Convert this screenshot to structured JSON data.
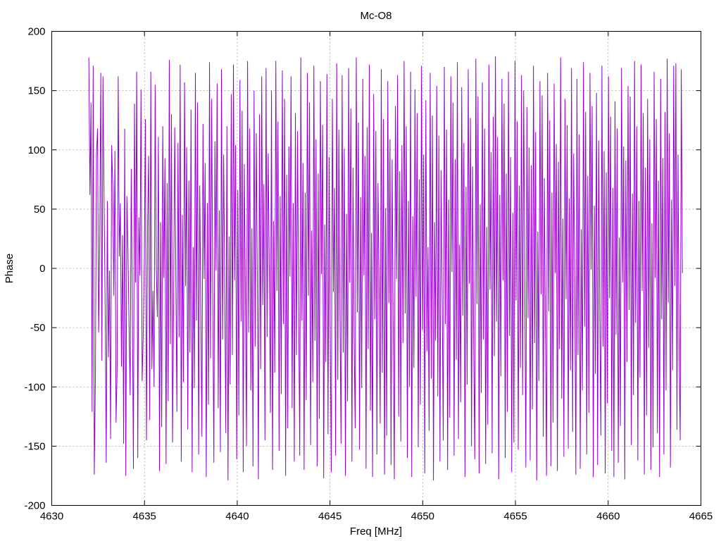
{
  "chart_data": {
    "type": "line",
    "title": "Mc-O8",
    "xlabel": "Freq [MHz]",
    "ylabel": "Phase",
    "xlim": [
      4630,
      4665
    ],
    "ylim": [
      -200,
      200
    ],
    "xticks": [
      4630,
      4635,
      4640,
      4645,
      4650,
      4655,
      4660,
      4665
    ],
    "yticks": [
      -200,
      -150,
      -100,
      -50,
      0,
      50,
      100,
      150,
      200
    ],
    "grid": true,
    "legend": "none",
    "line_color": "#9400d3",
    "x_start": 4632,
    "x_end": 4664,
    "point_count": 512,
    "series": [
      {
        "values": [
          178,
          62,
          140,
          -121,
          171,
          -174,
          -97,
          96,
          118,
          -54,
          21,
          165,
          -78,
          162,
          59,
          -31,
          -164,
          57,
          -75,
          -2,
          -144,
          104,
          70,
          -23,
          99,
          -130,
          -88,
          162,
          10,
          55,
          -83,
          28,
          -148,
          118,
          -175,
          61,
          14,
          -50,
          -107,
          84,
          -30,
          -169,
          139,
          -12,
          166,
          -160,
          43,
          -6,
          151,
          -95,
          -58,
          4,
          126,
          -145,
          36,
          95,
          -128,
          166,
          -85,
          -19,
          -100,
          155,
          2,
          -41,
          111,
          -171,
          39,
          -134,
          120,
          -8,
          93,
          -165,
          72,
          -112,
          176,
          -64,
          130,
          -147,
          -29,
          119,
          -4,
          -121,
          106,
          -58,
          172,
          -163,
          45,
          -96,
          157,
          -15,
          102,
          -136,
          74,
          -71,
          134,
          -172,
          18,
          -101,
          165,
          -44,
          140,
          -157,
          70,
          -33,
          -142,
          122,
          -9,
          89,
          -176,
          55,
          -115,
          174,
          -76,
          143,
          -28,
          -164,
          107,
          -2,
          156,
          -118,
          49,
          -155,
          168,
          -60,
          96,
          -14,
          -139,
          120,
          -179,
          27,
          -98,
          147,
          -73,
          172,
          -10,
          104,
          -161,
          66,
          -124,
          159,
          -45,
          133,
          -172,
          88,
          -20,
          -150,
          175,
          -54,
          118,
          -103,
          34,
          -167,
          150,
          -66,
          114,
          -11,
          -178,
          130,
          -85,
          162,
          -31,
          71,
          -145,
          169,
          -58,
          97,
          -2,
          -122,
          150,
          -170,
          40,
          -88,
          175,
          -19,
          124,
          -154,
          61,
          -106,
          167,
          -47,
          143,
          -175,
          79,
          -135,
          103,
          -7,
          162,
          -118,
          55,
          -163,
          131,
          -73,
          116,
          -32,
          -158,
          178,
          -44,
          89,
          -170,
          64,
          -111,
          165,
          -23,
          140,
          -149,
          32,
          -96,
          171,
          -61,
          109,
          -167,
          80,
          -127,
          158,
          -5,
          121,
          -177,
          37,
          -79,
          164,
          -140,
          94,
          -50,
          -172,
          143,
          -20,
          68,
          -158,
          173,
          -94,
          117,
          -34,
          -148,
          163,
          -71,
          101,
          -175,
          46,
          -112,
          169,
          -12,
          135,
          -163,
          85,
          -58,
          -135,
          178,
          -37,
          123,
          -153,
          60,
          -101,
          160,
          -6,
          95,
          -169,
          119,
          -68,
          172,
          -120,
          30,
          -176,
          147,
          -43,
          116,
          -157,
          72,
          -16,
          -131,
          168,
          -88,
          126,
          -174,
          51,
          -141,
          158,
          -29,
          109,
          -166,
          92,
          -55,
          -178,
          137,
          -9,
          163,
          -125,
          82,
          -146,
          104,
          -63,
          175,
          -38,
          120,
          -160,
          57,
          -100,
          166,
          -176,
          44,
          -84,
          151,
          -24,
          131,
          -151,
          75,
          -115,
          171,
          -52,
          96,
          -173,
          142,
          -70,
          18,
          -137,
          165,
          -93,
          129,
          -179,
          39,
          -61,
          154,
          -108,
          112,
          -163,
          83,
          -21,
          -145,
          170,
          -47,
          117,
          -170,
          58,
          -126,
          162,
          -3,
          140,
          -158,
          92,
          -77,
          174,
          -144,
          20,
          -113,
          153,
          -40,
          106,
          -176,
          69,
          -98,
          168,
          -13,
          127,
          -150,
          86,
          -65,
          -161,
          177,
          -30,
          145,
          -173,
          54,
          -105,
          157,
          -60,
          118,
          -165,
          35,
          -132,
          172,
          -18,
          98,
          -156,
          128,
          -74,
          179,
          -45,
          111,
          -178,
          62,
          -91,
          160,
          -10,
          139,
          -160,
          80,
          -121,
          166,
          -57,
          94,
          -172,
          47,
          -147,
          175,
          -27,
          124,
          -153,
          70,
          -84,
          163,
          -107,
          150,
          -8,
          -168,
          136,
          -42,
          102,
          -162,
          87,
          -119,
          171,
          -63,
          115,
          -179,
          31,
          -95,
          158,
          -22,
          146,
          -142,
          76,
          -52,
          -175,
          165,
          -36,
          125,
          -167,
          64,
          -130,
          156,
          -4,
          105,
          -171,
          90,
          -68,
          178,
          -110,
          42,
          -159,
          143,
          -26,
          121,
          -152,
          59,
          -86,
          169,
          -138,
          97,
          -15,
          -174,
          160,
          -73,
          113,
          -169,
          33,
          -103,
          174,
          -49,
          132,
          -157,
          78,
          -122,
          165,
          -1,
          137,
          -176,
          53,
          -89,
          148,
          -166,
          108,
          -39,
          -141,
          171,
          -66,
          99,
          -173,
          81,
          -114,
          162,
          -25,
          128,
          -154,
          68,
          -176,
          141,
          -56,
          118,
          -164,
          26,
          -133,
          169,
          -12,
          103,
          -178,
          91,
          -79,
          154,
          -35,
          145,
          -149,
          63,
          -107,
          175,
          -46,
          120,
          -162,
          57,
          -92,
          172,
          -19,
          131,
          -174,
          85,
          -124,
          143,
          -67,
          109,
          -170,
          38,
          -151,
          166,
          -8,
          126,
          -139,
          74,
          -176,
          160,
          -43,
          93,
          -157,
          132,
          -103,
          177,
          -29,
          114,
          -168,
          58,
          -86,
          171,
          -15,
          173,
          -136,
          96,
          -72,
          -145,
          168,
          -4
        ]
      }
    ]
  }
}
